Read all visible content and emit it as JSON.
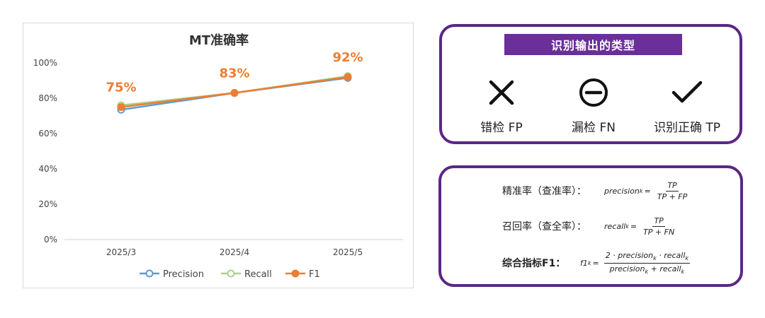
{
  "chart_data": {
    "type": "line",
    "title": "MT准确率",
    "categories": [
      "2025/3",
      "2025/4",
      "2025/5"
    ],
    "series": [
      {
        "name": "Precision",
        "values": [
          73.5,
          83,
          91.5
        ],
        "color": "#5b9bd5"
      },
      {
        "name": "Recall",
        "values": [
          76,
          83,
          92.5
        ],
        "color": "#a9d18e"
      },
      {
        "name": "F1",
        "values": [
          75,
          83,
          92
        ],
        "color": "#ed7d31"
      }
    ],
    "data_labels": [
      "75%",
      "83%",
      "92%"
    ],
    "y_ticks": [
      "0%",
      "20%",
      "40%",
      "60%",
      "80%",
      "100%"
    ],
    "ylim": [
      0,
      100
    ],
    "grid": false,
    "legend": "bottom"
  },
  "types_panel": {
    "title": "识别输出的类型",
    "items": [
      {
        "icon": "cross-icon",
        "label": "错检 FP"
      },
      {
        "icon": "minus-circle-icon",
        "label": "漏检 FN"
      },
      {
        "icon": "check-icon",
        "label": "识别正确 TP"
      }
    ]
  },
  "metrics_panel": {
    "precision": {
      "label": "精准率（查准率）：",
      "lhs": "precision",
      "sub": "k",
      "num": "TP",
      "den": "TP + FP"
    },
    "recall": {
      "label": "召回率（查全率）：",
      "lhs": "recall",
      "sub": "k",
      "num": "TP",
      "den": "TP + FN"
    },
    "f1": {
      "label": "综合指标F1：",
      "lhs": "f1",
      "sub": "k",
      "num_a": "2 · precision",
      "num_b": " · recall",
      "den_a": "precision",
      "den_b": " + recall"
    }
  }
}
